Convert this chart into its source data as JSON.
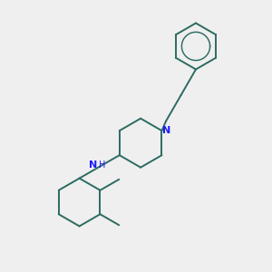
{
  "background_color": "#efefef",
  "bond_color": "#2d6b62",
  "nitrogen_color": "#1a1aff",
  "bond_width": 1.4,
  "font_size_N": 8,
  "font_size_H": 7,
  "figsize": [
    3.0,
    3.0
  ],
  "dpi": 100,
  "xlim": [
    0,
    10
  ],
  "ylim": [
    0,
    10
  ]
}
